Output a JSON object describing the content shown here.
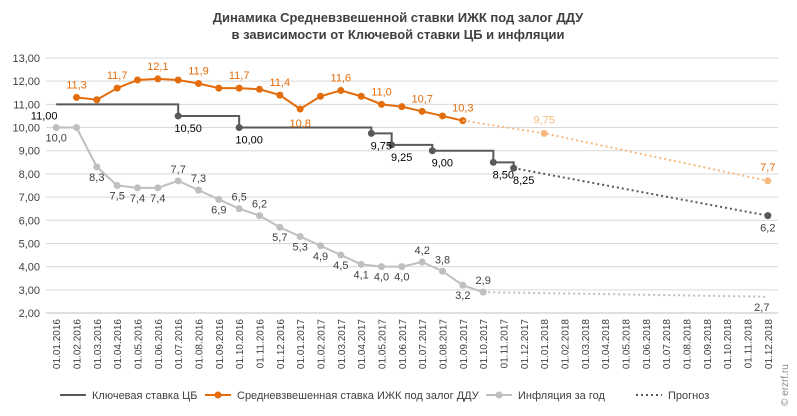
{
  "chart_data": {
    "type": "line",
    "title_line1": "Динамика Средневзвешенной ставки ИЖК под залог ДДУ",
    "title_line2": "в зависимости от Ключевой ставки ЦБ и инфляции",
    "ylim": [
      2,
      13
    ],
    "y_ticks": [
      "2,00",
      "3,00",
      "4,00",
      "5,00",
      "6,00",
      "7,00",
      "8,00",
      "9,00",
      "10,00",
      "11,00",
      "12,00",
      "13,00"
    ],
    "categories": [
      "01.01.2016",
      "01.02.2016",
      "01.03.2016",
      "01.04.2016",
      "01.05.2016",
      "01.06.2016",
      "01.07.2016",
      "01.08.2016",
      "01.09.2016",
      "01.10.2016",
      "01.11.2016",
      "01.12.2016",
      "01.01.2017",
      "01.02.2017",
      "01.03.2017",
      "01.04.2017",
      "01.05.2017",
      "01.06.2017",
      "01.07.2017",
      "01.08.2017",
      "01.09.2017",
      "01.10.2017",
      "01.11.2017",
      "01.12.2017",
      "01.01.2018",
      "01.02.2018",
      "01.03.2018",
      "01.04.2018",
      "01.05.2018",
      "01.06.2018",
      "01.07.2018",
      "01.08.2018",
      "01.09.2018",
      "01.10.2018",
      "01.11.2018",
      "01.12.2018"
    ],
    "grid": true,
    "legend_position": "bottom",
    "colors": {
      "key_rate": "#595959",
      "mortgage": "#e46c0a",
      "inflation": "#bfbfbf",
      "forecast": "#595959",
      "mortgage_forecast": "#f5b97f",
      "grid": "#d9d9d9"
    },
    "series": [
      {
        "name": "Ключевая ставка ЦБ",
        "key": "key_rate",
        "style": "step",
        "steps": [
          {
            "from": 0,
            "to": 6,
            "value": 11.0
          },
          {
            "from": 6,
            "to": 9,
            "value": 10.5
          },
          {
            "from": 9,
            "to": 15.5,
            "value": 10.0
          },
          {
            "from": 15.5,
            "to": 16.5,
            "value": 9.75
          },
          {
            "from": 16.5,
            "to": 18.5,
            "value": 9.25
          },
          {
            "from": 18.5,
            "to": 21.5,
            "value": 9.0
          },
          {
            "from": 21.5,
            "to": 22.5,
            "value": 8.5
          },
          {
            "from": 22.5,
            "to": 22.5,
            "value": 8.25
          }
        ],
        "markers": [
          {
            "x": 6,
            "y": 10.5
          },
          {
            "x": 9,
            "y": 10.0
          },
          {
            "x": 15.5,
            "y": 9.75
          },
          {
            "x": 16.5,
            "y": 9.25
          },
          {
            "x": 18.5,
            "y": 9.0
          },
          {
            "x": 21.5,
            "y": 8.5
          },
          {
            "x": 22.5,
            "y": 8.25
          }
        ],
        "labels": [
          {
            "x": 0,
            "y": 11.0,
            "text": "11,00"
          },
          {
            "x": 6,
            "y": 10.5,
            "text": "10,50"
          },
          {
            "x": 9,
            "y": 10.0,
            "text": "10,00"
          },
          {
            "x": 15.5,
            "y": 9.75,
            "text": "9,75"
          },
          {
            "x": 16.5,
            "y": 9.25,
            "text": "9,25"
          },
          {
            "x": 18.5,
            "y": 9.0,
            "text": "9,00"
          },
          {
            "x": 21.5,
            "y": 8.5,
            "text": "8,50"
          },
          {
            "x": 22.5,
            "y": 8.25,
            "text": "8,25"
          }
        ]
      },
      {
        "name": "Средневзвешенная ставка ИЖК под залог ДДУ",
        "key": "mortgage",
        "style": "line",
        "x": [
          1,
          2,
          3,
          4,
          5,
          6,
          7,
          8,
          9,
          10,
          11,
          12,
          13,
          14,
          15,
          16,
          17,
          18,
          19,
          20
        ],
        "values": [
          11.3,
          11.2,
          11.7,
          12.05,
          12.1,
          12.05,
          11.9,
          11.7,
          11.7,
          11.65,
          11.4,
          10.8,
          11.35,
          11.6,
          11.35,
          11.0,
          10.9,
          10.7,
          10.5,
          10.3
        ],
        "labels": [
          {
            "x": 1,
            "text": "11,3"
          },
          {
            "x": 3,
            "text": "11,7"
          },
          {
            "x": 5,
            "text": "12,1"
          },
          {
            "x": 7,
            "text": "11,9"
          },
          {
            "x": 9,
            "text": "11,7"
          },
          {
            "x": 11,
            "text": "11,4"
          },
          {
            "x": 12,
            "text": "10,8",
            "below": true
          },
          {
            "x": 14,
            "text": "11,6"
          },
          {
            "x": 16,
            "text": "11,0"
          },
          {
            "x": 18,
            "text": "10,7"
          },
          {
            "x": 20,
            "text": "10,3"
          }
        ]
      },
      {
        "name": "Инфляция за год",
        "key": "inflation",
        "style": "line",
        "x": [
          0,
          1,
          2,
          3,
          4,
          5,
          6,
          7,
          8,
          9,
          10,
          11,
          12,
          13,
          14,
          15,
          16,
          17,
          18,
          19,
          20,
          21
        ],
        "values": [
          10.0,
          10.0,
          8.3,
          7.5,
          7.4,
          7.4,
          7.7,
          7.3,
          6.9,
          6.5,
          6.2,
          5.7,
          5.3,
          4.9,
          4.5,
          4.1,
          4.0,
          4.0,
          4.2,
          3.8,
          3.2,
          2.9
        ],
        "labels": [
          {
            "x": 0,
            "text": "10,0",
            "below": true
          },
          {
            "x": 2,
            "text": "8,3",
            "below": true
          },
          {
            "x": 3,
            "text": "7,5",
            "below": true
          },
          {
            "x": 4,
            "text": "7,4",
            "below": true
          },
          {
            "x": 5,
            "text": "7,4",
            "below": true
          },
          {
            "x": 6,
            "text": "7,7"
          },
          {
            "x": 7,
            "text": "7,3"
          },
          {
            "x": 8,
            "text": "6,9",
            "below": true
          },
          {
            "x": 9,
            "text": "6,5"
          },
          {
            "x": 10,
            "text": "6,2"
          },
          {
            "x": 11,
            "text": "5,7",
            "below": true
          },
          {
            "x": 12,
            "text": "5,3",
            "below": true
          },
          {
            "x": 13,
            "text": "4,9",
            "below": true
          },
          {
            "x": 14,
            "text": "4,5",
            "below": true
          },
          {
            "x": 15,
            "text": "4,1",
            "below": true
          },
          {
            "x": 16,
            "text": "4,0",
            "below": true
          },
          {
            "x": 17,
            "text": "4,0",
            "below": true
          },
          {
            "x": 18,
            "text": "4,2"
          },
          {
            "x": 19,
            "text": "3,8"
          },
          {
            "x": 20,
            "text": "3,2",
            "below": true
          },
          {
            "x": 21,
            "text": "2,9"
          }
        ]
      },
      {
        "name": "Прогноз",
        "key": "forecast",
        "style": "dotted",
        "lines": [
          {
            "points": [
              [
                22.5,
                8.25
              ],
              [
                35,
                6.2
              ]
            ],
            "color_key": "forecast",
            "end_label": "6,2",
            "end_marker": true
          },
          {
            "points": [
              [
                20,
                10.3
              ],
              [
                24,
                9.75
              ],
              [
                35,
                7.7
              ]
            ],
            "color_key": "mortgage_forecast",
            "mid_marker": [
              24,
              9.75
            ],
            "mid_label": "9,75",
            "end_label": "7,7",
            "end_marker": true
          },
          {
            "points": [
              [
                21,
                2.9
              ],
              [
                35,
                2.7
              ]
            ],
            "color_key": "inflation",
            "end_label": "2,7",
            "end_marker": false
          }
        ]
      }
    ],
    "legend": [
      {
        "label": "Ключевая ставка ЦБ",
        "key": "key_rate",
        "marker": false,
        "dotted": false
      },
      {
        "label": "Средневзвешенная ставка ИЖК под залог ДДУ",
        "key": "mortgage",
        "marker": true,
        "dotted": false
      },
      {
        "label": "Инфляция за год",
        "key": "inflation",
        "marker": true,
        "dotted": false
      },
      {
        "label": "Прогноз",
        "key": "forecast",
        "marker": false,
        "dotted": true
      }
    ]
  },
  "watermark": "© erzrf.ru"
}
